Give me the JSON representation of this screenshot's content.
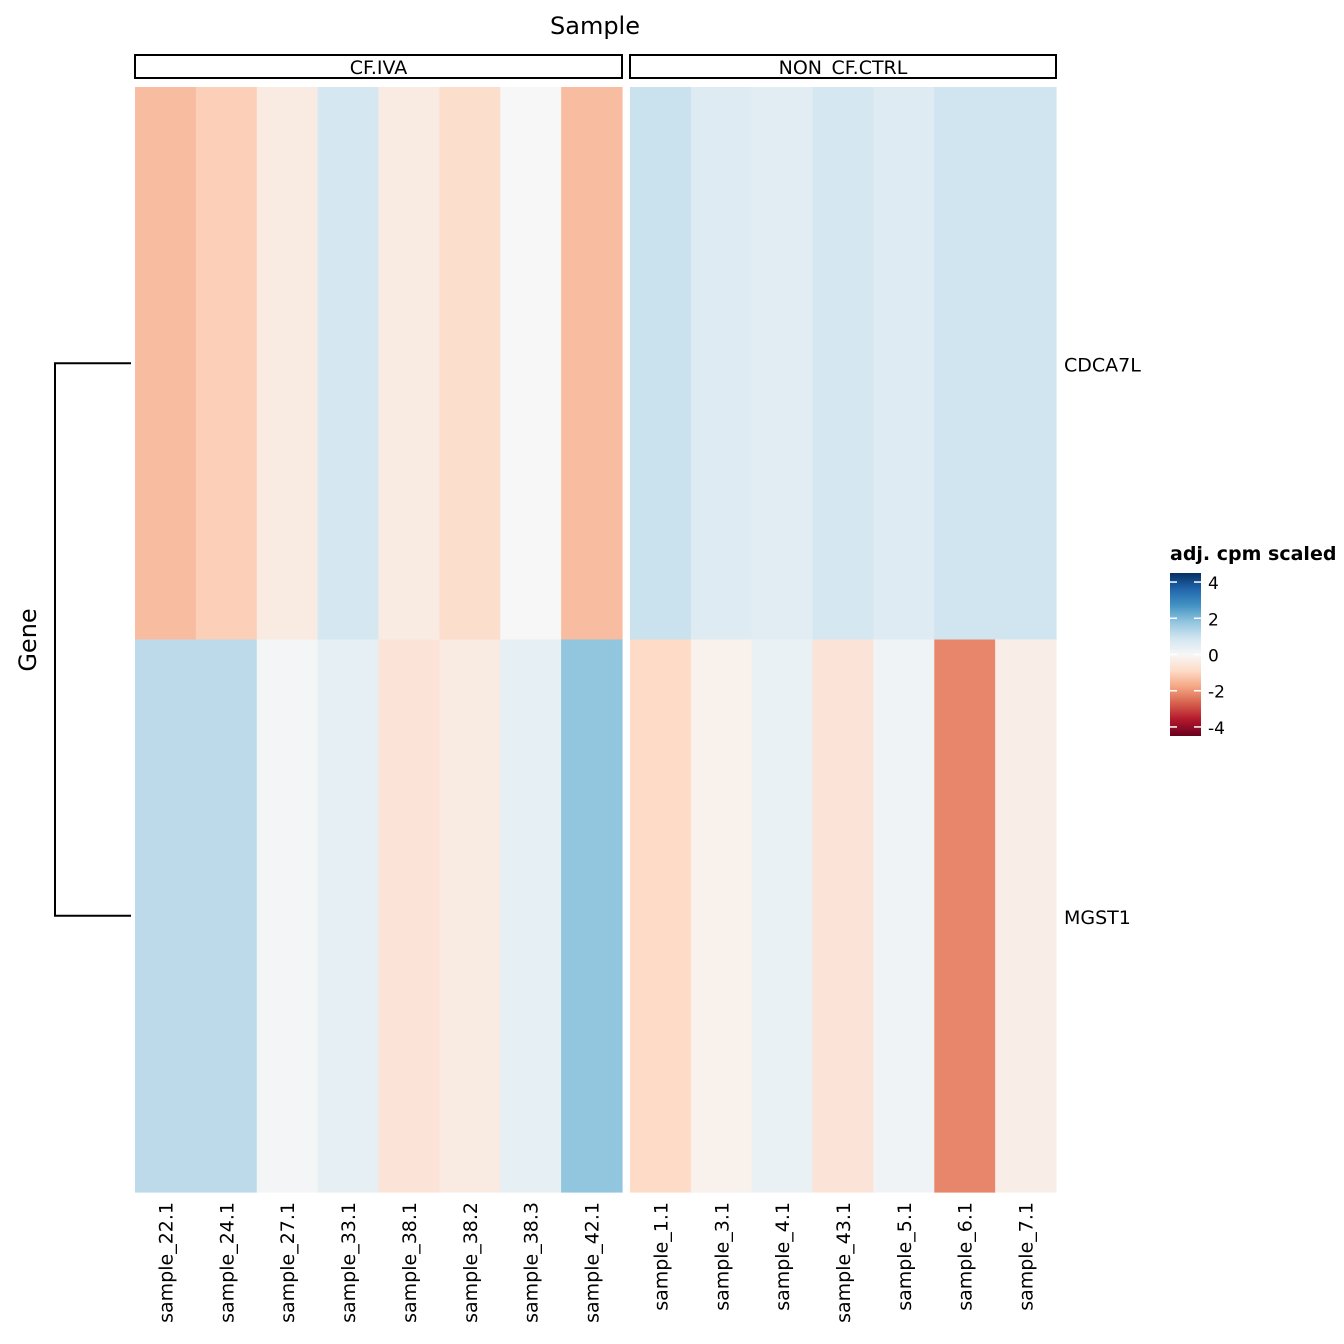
{
  "chart_data": {
    "type": "heatmap",
    "title": "Sample",
    "ylabel": "Gene",
    "groups": [
      {
        "name": "CF.IVA",
        "samples": [
          "sample_22.1",
          "sample_24.1",
          "sample_27.1",
          "sample_33.1",
          "sample_38.1",
          "sample_38.2",
          "sample_38.3",
          "sample_42.1"
        ]
      },
      {
        "name": "NON_CF.CTRL",
        "samples": [
          "sample_1.1",
          "sample_3.1",
          "sample_4.1",
          "sample_43.1",
          "sample_5.1",
          "sample_6.1",
          "sample_7.1"
        ]
      }
    ],
    "genes": [
      "CDCA7L",
      "MGST1"
    ],
    "values": [
      [
        -1.4,
        -1.1,
        -0.4,
        0.8,
        -0.4,
        -0.8,
        0.0,
        -1.4,
        1.0,
        0.6,
        0.5,
        0.8,
        0.6,
        0.9,
        0.9
      ],
      [
        1.2,
        1.2,
        0.1,
        0.4,
        -0.6,
        -0.4,
        0.4,
        1.8,
        -0.9,
        -0.2,
        0.3,
        -0.6,
        0.2,
        -2.2,
        -0.3
      ]
    ],
    "dendrogram": "rows",
    "legend": {
      "title": "adj. cpm scaled",
      "ticks": [
        4,
        2,
        0,
        -2,
        -4
      ],
      "range": [
        -4.5,
        4.5
      ],
      "colors": [
        "#67001f",
        "#b2182b",
        "#d6604d",
        "#f4a582",
        "#fddbc7",
        "#f7f7f7",
        "#d1e5f0",
        "#92c5de",
        "#4393c3",
        "#2166ac",
        "#053061"
      ],
      "position": "right"
    }
  }
}
